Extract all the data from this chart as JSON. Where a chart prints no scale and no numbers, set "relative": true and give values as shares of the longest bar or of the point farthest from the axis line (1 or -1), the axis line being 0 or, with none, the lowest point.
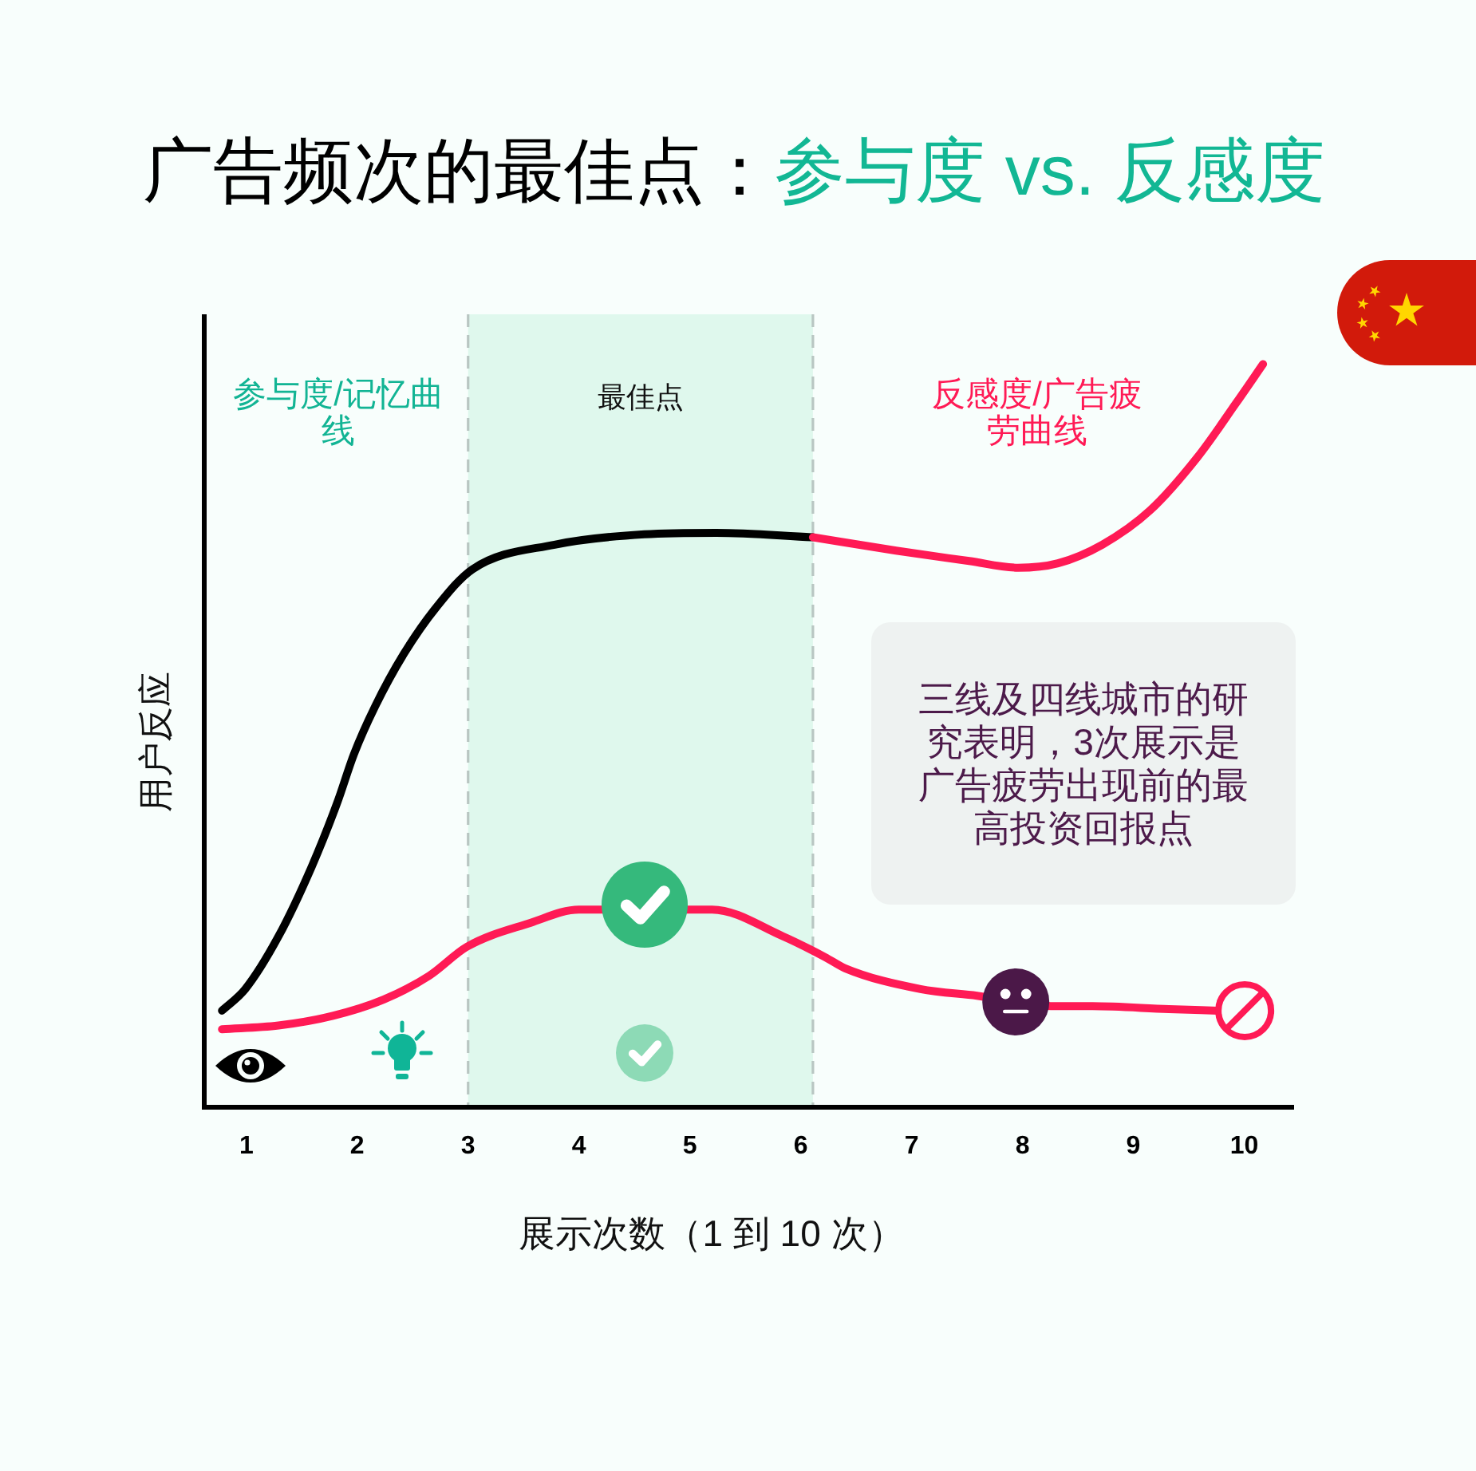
{
  "chart_data": {
    "type": "line",
    "title": "广告频次的最佳点：",
    "subtitle": "参与度 vs. 反感度",
    "xlabel": "展示次数（1 到 10 次）",
    "ylabel": "用户反应",
    "relative": true,
    "xlim": [
      0.62,
      10.45
    ],
    "xticks": [
      1,
      2,
      3,
      4,
      5,
      6,
      7,
      8,
      9,
      10
    ],
    "series": [
      {
        "color": "#000000",
        "x": [
          0.78,
          0.99,
          1.29,
          1.59,
          1.82,
          1.97,
          2.16,
          2.42,
          2.72,
          3.04,
          3.78,
          4.59,
          5.24,
          6.11
        ],
        "values": [
          0.13,
          0.159,
          0.23,
          0.324,
          0.41,
          0.475,
          0.539,
          0.61,
          0.674,
          0.724,
          0.757,
          0.771,
          0.773,
          0.767
        ]
      },
      {
        "color": "#ff1a55",
        "x": [
          6.11,
          6.86,
          7.52,
          7.96,
          8.32,
          8.72,
          9.15,
          9.58,
          9.92,
          10.17
        ],
        "values": [
          0.767,
          0.749,
          0.735,
          0.726,
          0.732,
          0.757,
          0.803,
          0.875,
          0.946,
          1
        ]
      },
      {
        "color": "#ff1a55",
        "x": [
          0.78,
          1.29,
          1.78,
          2.24,
          2.65,
          2.99,
          3.56,
          4.0,
          5.2,
          5.84,
          6.22,
          6.4,
          7.08,
          7.59,
          8.29,
          8.63,
          9.32,
          9.76
        ],
        "values": [
          0.105,
          0.11,
          0.123,
          0.145,
          0.177,
          0.216,
          0.248,
          0.266,
          0.266,
          0.23,
          0.202,
          0.187,
          0.159,
          0.15,
          0.136,
          0.136,
          0.132,
          0.13
        ]
      }
    ],
    "bands": [
      {
        "axis": "x",
        "from": 3.0,
        "to": 6.11,
        "label": "最佳点",
        "color": "#dff8ed"
      }
    ],
    "annotations": [
      "参与度/记忆曲线",
      "反感度/广告疲劳曲线",
      "三线及四线城市的研究表明，3次展示是广告疲劳出现前的最高投资回报点"
    ],
    "line_style": "solid"
  }
}
